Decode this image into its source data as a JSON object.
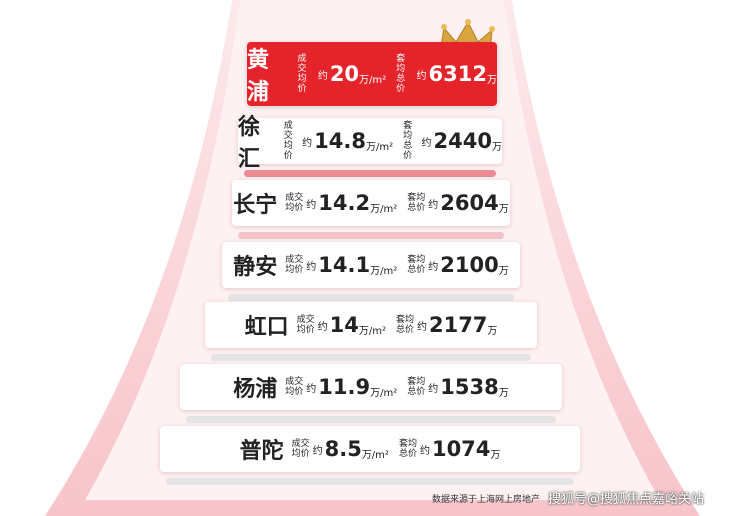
{
  "labels": {
    "price_top": "成交",
    "price_bottom": "均价",
    "approx": "约",
    "price_unit": "万/m²",
    "total_top": "套均",
    "total_bottom": "总价",
    "total_unit": "万"
  },
  "rows": [
    {
      "district": "黄浦",
      "price": 20,
      "total": 6312
    },
    {
      "district": "徐汇",
      "price": 14.8,
      "total": 2440
    },
    {
      "district": "长宁",
      "price": 14.2,
      "total": 2604
    },
    {
      "district": "静安",
      "price": 14.1,
      "total": 2100
    },
    {
      "district": "虹口",
      "price": 14,
      "total": 2177
    },
    {
      "district": "杨浦",
      "price": 11.9,
      "total": 1538
    },
    {
      "district": "普陀",
      "price": 8.5,
      "total": 1074
    }
  ],
  "footer": {
    "source": "数据来源于上海网上房地产",
    "watermark": "搜狐号@搜狐焦点嘉峪关站"
  }
}
